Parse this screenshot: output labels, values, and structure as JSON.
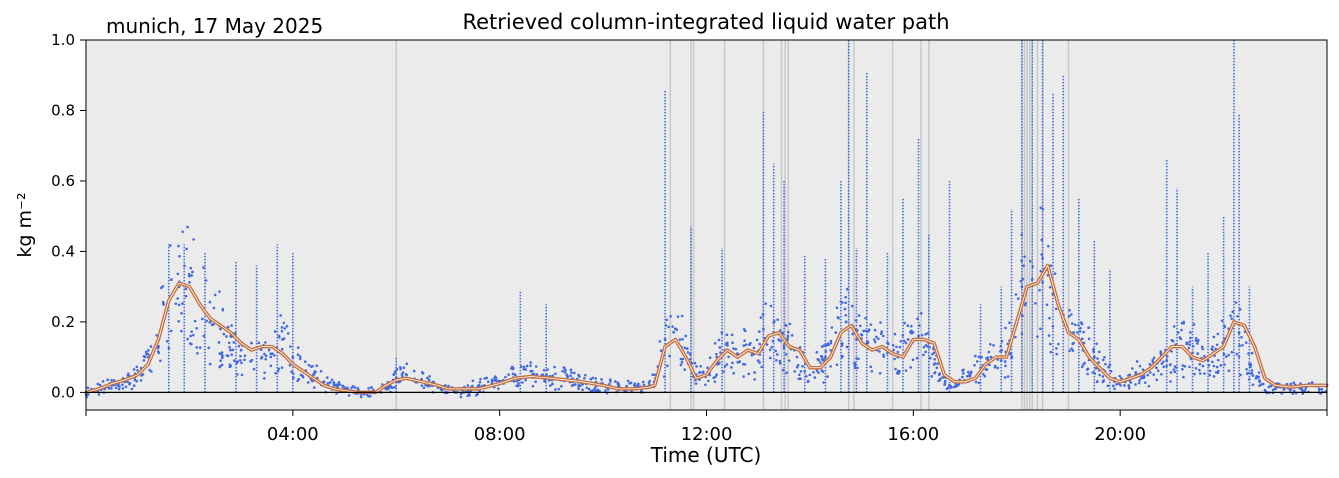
{
  "chart_data": {
    "type": "scatter",
    "title": "Retrieved column-integrated liquid water path",
    "subtitle": "munich, 17 May 2025",
    "xlabel": "Time (UTC)",
    "ylabel": "kg m⁻²",
    "xlim": [
      0,
      24
    ],
    "ylim": [
      -0.05,
      1.0
    ],
    "x_ticks": [
      {
        "value": 4,
        "label": "04:00"
      },
      {
        "value": 8,
        "label": "08:00"
      },
      {
        "value": 12,
        "label": "12:00"
      },
      {
        "value": 16,
        "label": "16:00"
      },
      {
        "value": 20,
        "label": "20:00"
      }
    ],
    "y_ticks": [
      {
        "value": 0.0,
        "label": "0.0"
      },
      {
        "value": 0.2,
        "label": "0.2"
      },
      {
        "value": 0.4,
        "label": "0.4"
      },
      {
        "value": 0.6,
        "label": "0.6"
      },
      {
        "value": 0.8,
        "label": "0.8"
      },
      {
        "value": 1.0,
        "label": "1.0"
      }
    ],
    "background_color": "#ebebeb",
    "zero_line": true,
    "rain_flag_times": [
      6.0,
      11.3,
      11.7,
      11.75,
      12.35,
      13.1,
      13.45,
      13.52,
      13.58,
      14.75,
      14.85,
      15.6,
      16.15,
      16.3,
      18.1,
      18.15,
      18.2,
      18.25,
      18.3,
      18.4,
      18.5,
      19.0
    ],
    "series": [
      {
        "style": "scatter",
        "color": "#4169e1",
        "x": [
          0.0,
          0.25,
          0.5,
          0.75,
          1.0,
          1.2,
          1.4,
          1.5,
          1.65,
          1.8,
          2.0,
          2.2,
          2.4,
          2.6,
          2.8,
          3.0,
          3.2,
          3.4,
          3.6,
          3.8,
          4.0,
          4.2,
          4.4,
          4.6,
          4.8,
          5.0,
          5.3,
          5.6,
          5.8,
          6.0,
          6.2,
          6.5,
          6.8,
          7.0,
          7.3,
          7.6,
          8.0,
          8.3,
          8.6,
          9.0,
          9.3,
          9.6,
          10.0,
          10.3,
          10.6,
          10.9,
          11.0,
          11.2,
          11.4,
          11.6,
          11.8,
          12.0,
          12.2,
          12.4,
          12.6,
          12.8,
          13.0,
          13.1,
          13.3,
          13.5,
          13.7,
          13.9,
          14.1,
          14.3,
          14.5,
          14.7,
          14.9,
          15.1,
          15.3,
          15.5,
          15.7,
          15.9,
          16.1,
          16.3,
          16.5,
          16.7,
          16.9,
          17.1,
          17.3,
          17.5,
          17.7,
          17.9,
          18.1,
          18.3,
          18.5,
          18.7,
          18.9,
          19.1,
          19.3,
          19.5,
          19.7,
          19.9,
          20.1,
          20.3,
          20.5,
          20.7,
          20.9,
          21.1,
          21.3,
          21.5,
          21.7,
          21.9,
          22.1,
          22.3,
          22.5,
          22.7,
          23.0,
          23.3,
          23.6,
          24.0
        ],
        "y": [
          0.0,
          0.01,
          0.02,
          0.03,
          0.05,
          0.08,
          0.15,
          0.25,
          0.32,
          0.3,
          0.33,
          0.25,
          0.2,
          0.18,
          0.16,
          0.12,
          0.14,
          0.1,
          0.11,
          0.15,
          0.1,
          0.06,
          0.05,
          0.03,
          0.02,
          0.01,
          0.0,
          0.0,
          0.01,
          0.04,
          0.05,
          0.03,
          0.02,
          0.01,
          0.0,
          0.02,
          0.03,
          0.05,
          0.06,
          0.04,
          0.05,
          0.03,
          0.02,
          0.02,
          0.01,
          0.02,
          0.05,
          0.15,
          0.18,
          0.16,
          0.05,
          0.05,
          0.1,
          0.14,
          0.11,
          0.12,
          0.09,
          0.18,
          0.17,
          0.15,
          0.12,
          0.06,
          0.07,
          0.1,
          0.17,
          0.2,
          0.15,
          0.14,
          0.12,
          0.14,
          0.1,
          0.15,
          0.16,
          0.14,
          0.05,
          0.02,
          0.03,
          0.05,
          0.07,
          0.1,
          0.09,
          0.15,
          0.3,
          0.32,
          0.38,
          0.28,
          0.2,
          0.17,
          0.14,
          0.1,
          0.06,
          0.04,
          0.03,
          0.05,
          0.06,
          0.07,
          0.09,
          0.13,
          0.14,
          0.11,
          0.09,
          0.12,
          0.18,
          0.17,
          0.08,
          0.03,
          0.01,
          0.01,
          0.02,
          0.02
        ],
        "spikes": [
          {
            "x": 1.6,
            "y": 0.42
          },
          {
            "x": 1.9,
            "y": 0.42
          },
          {
            "x": 2.3,
            "y": 0.4
          },
          {
            "x": 2.9,
            "y": 0.37
          },
          {
            "x": 3.3,
            "y": 0.36
          },
          {
            "x": 3.7,
            "y": 0.42
          },
          {
            "x": 4.0,
            "y": 0.4
          },
          {
            "x": 6.0,
            "y": 0.1
          },
          {
            "x": 8.4,
            "y": 0.29
          },
          {
            "x": 8.9,
            "y": 0.25
          },
          {
            "x": 11.2,
            "y": 0.86
          },
          {
            "x": 11.7,
            "y": 0.47
          },
          {
            "x": 12.3,
            "y": 0.41
          },
          {
            "x": 13.1,
            "y": 0.8
          },
          {
            "x": 13.3,
            "y": 0.65
          },
          {
            "x": 13.5,
            "y": 0.6
          },
          {
            "x": 13.9,
            "y": 0.39
          },
          {
            "x": 14.3,
            "y": 0.38
          },
          {
            "x": 14.6,
            "y": 0.6
          },
          {
            "x": 14.75,
            "y": 1.0
          },
          {
            "x": 14.9,
            "y": 0.41
          },
          {
            "x": 15.1,
            "y": 0.91
          },
          {
            "x": 15.5,
            "y": 0.4
          },
          {
            "x": 15.8,
            "y": 0.55
          },
          {
            "x": 16.1,
            "y": 0.72
          },
          {
            "x": 16.3,
            "y": 0.45
          },
          {
            "x": 16.7,
            "y": 0.6
          },
          {
            "x": 17.3,
            "y": 0.25
          },
          {
            "x": 17.7,
            "y": 0.3
          },
          {
            "x": 17.9,
            "y": 0.52
          },
          {
            "x": 18.1,
            "y": 1.0
          },
          {
            "x": 18.3,
            "y": 1.0
          },
          {
            "x": 18.5,
            "y": 1.0
          },
          {
            "x": 18.7,
            "y": 0.85
          },
          {
            "x": 18.9,
            "y": 0.9
          },
          {
            "x": 19.2,
            "y": 0.55
          },
          {
            "x": 19.5,
            "y": 0.43
          },
          {
            "x": 19.8,
            "y": 0.35
          },
          {
            "x": 20.9,
            "y": 0.66
          },
          {
            "x": 21.1,
            "y": 0.58
          },
          {
            "x": 21.4,
            "y": 0.3
          },
          {
            "x": 21.7,
            "y": 0.4
          },
          {
            "x": 22.0,
            "y": 0.5
          },
          {
            "x": 22.2,
            "y": 1.0
          },
          {
            "x": 22.3,
            "y": 0.79
          },
          {
            "x": 22.5,
            "y": 0.3
          }
        ]
      },
      {
        "style": "line",
        "color": "#c46e3b",
        "x": [
          0.0,
          0.25,
          0.5,
          0.75,
          1.0,
          1.2,
          1.4,
          1.6,
          1.8,
          2.0,
          2.2,
          2.4,
          2.6,
          2.8,
          3.0,
          3.2,
          3.4,
          3.6,
          3.8,
          4.0,
          4.2,
          4.4,
          4.6,
          4.8,
          5.0,
          5.3,
          5.6,
          5.8,
          6.0,
          6.2,
          6.5,
          6.8,
          7.0,
          7.3,
          7.6,
          8.0,
          8.3,
          8.6,
          9.0,
          9.3,
          9.6,
          10.0,
          10.3,
          10.6,
          10.9,
          11.0,
          11.2,
          11.4,
          11.6,
          11.8,
          12.0,
          12.2,
          12.4,
          12.6,
          12.8,
          13.0,
          13.2,
          13.4,
          13.6,
          13.8,
          14.0,
          14.2,
          14.4,
          14.6,
          14.8,
          15.0,
          15.2,
          15.4,
          15.6,
          15.8,
          16.0,
          16.2,
          16.4,
          16.6,
          16.8,
          17.0,
          17.2,
          17.4,
          17.6,
          17.8,
          18.0,
          18.2,
          18.4,
          18.6,
          18.8,
          19.0,
          19.2,
          19.4,
          19.6,
          19.8,
          20.0,
          20.2,
          20.4,
          20.6,
          20.8,
          21.0,
          21.2,
          21.4,
          21.6,
          21.8,
          22.0,
          22.2,
          22.4,
          22.6,
          22.8,
          23.0,
          23.3,
          23.6,
          24.0
        ],
        "y": [
          0.0,
          0.01,
          0.025,
          0.035,
          0.05,
          0.08,
          0.15,
          0.26,
          0.31,
          0.3,
          0.25,
          0.21,
          0.19,
          0.17,
          0.14,
          0.12,
          0.13,
          0.13,
          0.11,
          0.08,
          0.06,
          0.04,
          0.02,
          0.01,
          0.005,
          0.0,
          0.0,
          0.02,
          0.035,
          0.04,
          0.03,
          0.02,
          0.01,
          0.01,
          0.01,
          0.025,
          0.04,
          0.045,
          0.04,
          0.035,
          0.03,
          0.02,
          0.01,
          0.01,
          0.015,
          0.02,
          0.13,
          0.15,
          0.1,
          0.04,
          0.05,
          0.09,
          0.12,
          0.1,
          0.12,
          0.11,
          0.16,
          0.17,
          0.13,
          0.12,
          0.07,
          0.07,
          0.1,
          0.17,
          0.19,
          0.14,
          0.12,
          0.13,
          0.11,
          0.1,
          0.15,
          0.15,
          0.14,
          0.05,
          0.03,
          0.03,
          0.04,
          0.08,
          0.1,
          0.1,
          0.2,
          0.3,
          0.31,
          0.36,
          0.25,
          0.17,
          0.15,
          0.1,
          0.07,
          0.04,
          0.03,
          0.04,
          0.05,
          0.07,
          0.1,
          0.13,
          0.13,
          0.1,
          0.09,
          0.11,
          0.13,
          0.2,
          0.19,
          0.13,
          0.04,
          0.02,
          0.015,
          0.02,
          0.02
        ]
      }
    ]
  }
}
